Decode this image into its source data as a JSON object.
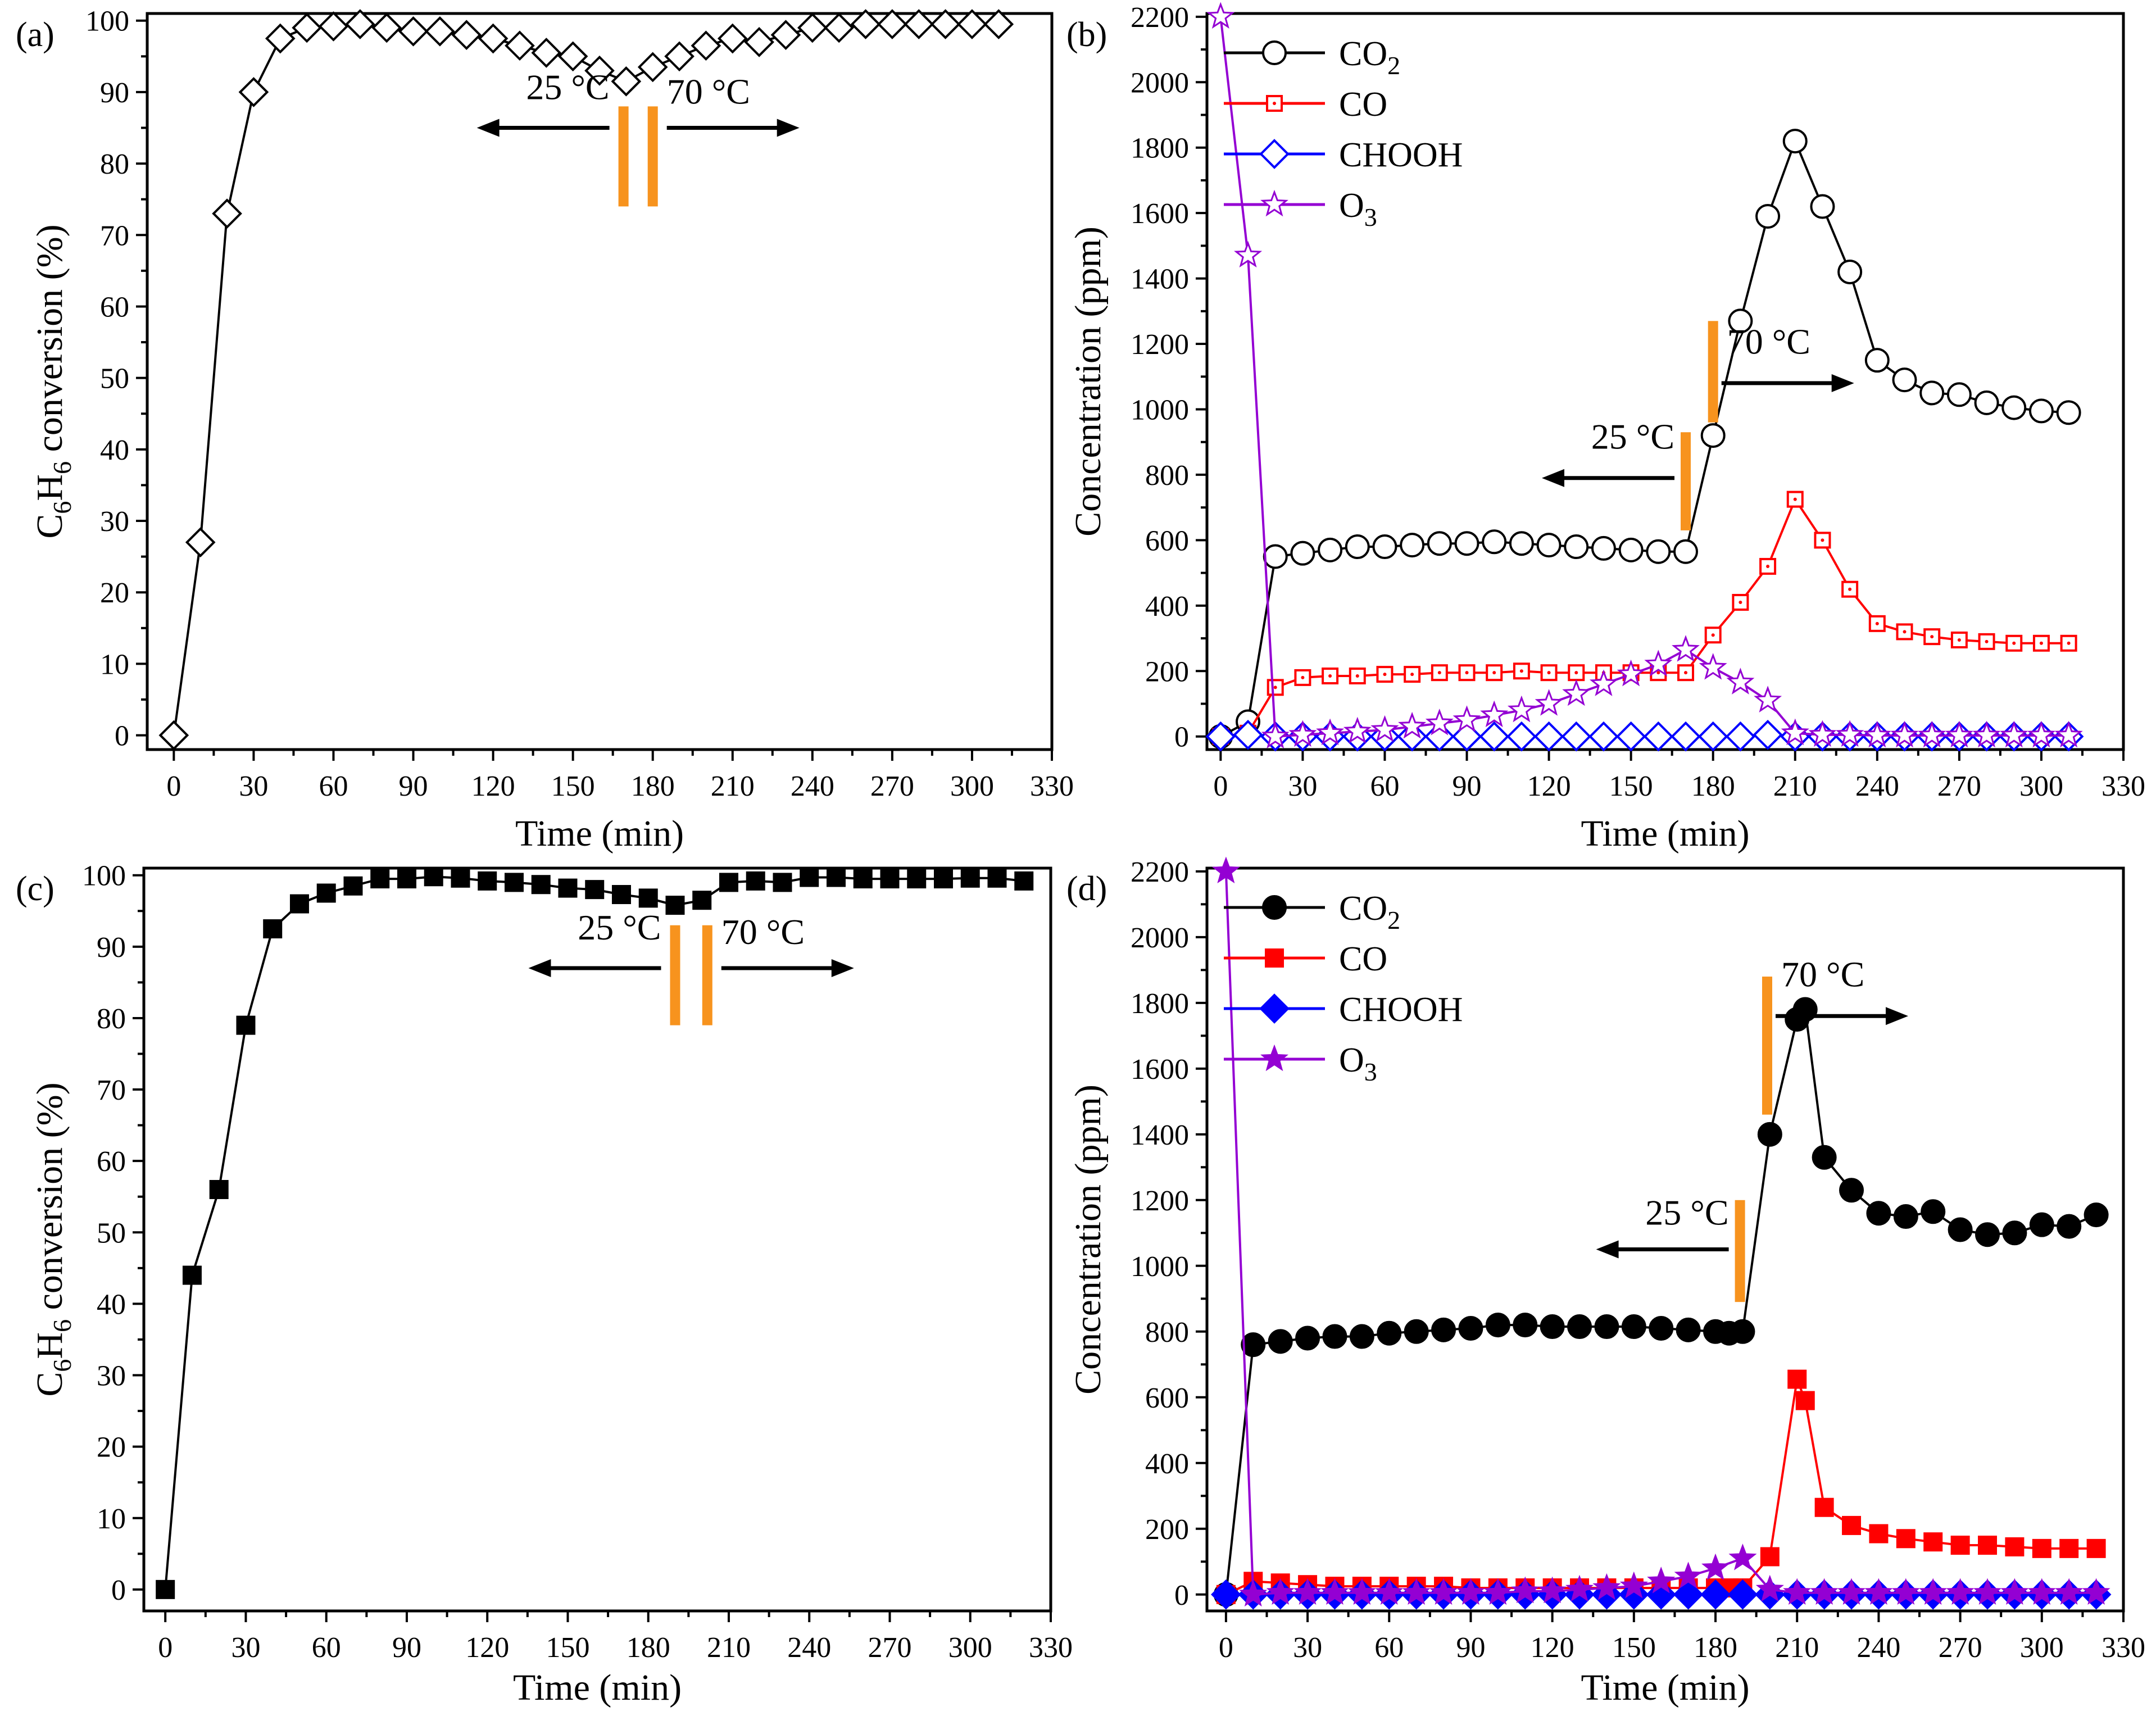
{
  "chart_data": [
    {
      "panel": "(a)",
      "type": "line",
      "xlabel": "Time (min)",
      "ylabel": "C6H6 conversion (%)",
      "ylabel_parts": {
        "a": "C",
        "b": "6",
        "c": "H",
        "d": "6",
        "e": " conversion (%)"
      },
      "xlim": [
        -10,
        330
      ],
      "ylim": [
        -2,
        101
      ],
      "xticks": [
        0,
        30,
        60,
        90,
        120,
        150,
        180,
        210,
        240,
        270,
        300,
        330
      ],
      "yticks": [
        0,
        10,
        20,
        30,
        40,
        50,
        60,
        70,
        80,
        90,
        100
      ],
      "annotations": {
        "left": "25 °C",
        "right": "70 °C",
        "left_t": 169,
        "right_t": 180,
        "y_text": 89,
        "y_arrow": 85,
        "bar_y": [
          74,
          88
        ]
      },
      "series": [
        {
          "name": "C6H6 conversion",
          "color": "#000000",
          "marker": "diamond",
          "filled": false,
          "x": [
            0,
            10,
            20,
            30,
            40,
            50,
            60,
            70,
            80,
            90,
            100,
            110,
            120,
            130,
            140,
            150,
            160,
            170,
            180,
            190,
            200,
            210,
            220,
            230,
            240,
            250,
            260,
            270,
            280,
            290,
            300,
            310
          ],
          "y": [
            0,
            27,
            73,
            90,
            97.5,
            99,
            99.2,
            99.5,
            99,
            98.5,
            98.5,
            98,
            97.5,
            96.5,
            95.5,
            95,
            93,
            91.5,
            93.5,
            95,
            96.5,
            97.5,
            97,
            98,
            99,
            99,
            99.5,
            99.5,
            99.5,
            99.5,
            99.5,
            99.5
          ]
        }
      ]
    },
    {
      "panel": "(b)",
      "type": "line",
      "xlabel": "Time (min)",
      "ylabel": "Concentration (ppm)",
      "xlim": [
        -5,
        330
      ],
      "ylim": [
        -40,
        2210
      ],
      "xticks": [
        0,
        30,
        60,
        90,
        120,
        150,
        180,
        210,
        240,
        270,
        300,
        330
      ],
      "yticks": [
        0,
        200,
        400,
        600,
        800,
        1000,
        1200,
        1400,
        1600,
        1800,
        2000,
        2200
      ],
      "annotations": {
        "left": "25 °C",
        "right": "70 °C",
        "left_t": 170,
        "right_t": 180,
        "left_y_text": 880,
        "left_y_arrow": 790,
        "left_bar": [
          630,
          930
        ],
        "right_y_text": 1170,
        "right_y_arrow": 1080,
        "right_bar": [
          960,
          1270
        ]
      },
      "legend": [
        {
          "label": "CO",
          "sub": "2"
        },
        {
          "label": "CO",
          "sub": ""
        },
        {
          "label": "CHOOH",
          "sub": ""
        },
        {
          "label": "O",
          "sub": "3"
        }
      ],
      "series": [
        {
          "name": "CO2",
          "color": "#000000",
          "marker": "circle",
          "filled": false,
          "x": [
            0,
            10,
            20,
            30,
            40,
            50,
            60,
            70,
            80,
            90,
            100,
            110,
            120,
            130,
            140,
            150,
            160,
            170,
            180,
            190,
            200,
            210,
            220,
            230,
            240,
            250,
            260,
            270,
            280,
            290,
            300,
            310
          ],
          "y": [
            0,
            45,
            550,
            560,
            570,
            580,
            580,
            585,
            590,
            590,
            595,
            590,
            585,
            580,
            575,
            570,
            565,
            565,
            920,
            1270,
            1590,
            1820,
            1620,
            1420,
            1150,
            1090,
            1050,
            1045,
            1020,
            1005,
            995,
            990
          ]
        },
        {
          "name": "CO",
          "color": "#ff0000",
          "marker": "square",
          "filled": false,
          "x": [
            0,
            10,
            20,
            30,
            40,
            50,
            60,
            70,
            80,
            90,
            100,
            110,
            120,
            130,
            140,
            150,
            160,
            170,
            180,
            190,
            200,
            210,
            220,
            230,
            240,
            250,
            260,
            270,
            280,
            290,
            300,
            310
          ],
          "y": [
            0,
            10,
            150,
            180,
            185,
            185,
            190,
            190,
            195,
            195,
            195,
            200,
            195,
            195,
            195,
            195,
            195,
            195,
            310,
            410,
            520,
            725,
            600,
            450,
            345,
            320,
            305,
            295,
            290,
            285,
            285,
            285
          ]
        },
        {
          "name": "CHOOH",
          "color": "#0000ff",
          "marker": "diamond",
          "filled": false,
          "x": [
            0,
            10,
            20,
            30,
            40,
            50,
            60,
            70,
            80,
            90,
            100,
            110,
            120,
            130,
            140,
            150,
            160,
            170,
            180,
            190,
            200,
            210,
            220,
            230,
            240,
            250,
            260,
            270,
            280,
            290,
            300,
            310
          ],
          "y": [
            0,
            5,
            0,
            0,
            0,
            0,
            0,
            0,
            0,
            0,
            0,
            0,
            0,
            0,
            0,
            0,
            0,
            0,
            0,
            0,
            5,
            0,
            0,
            0,
            0,
            0,
            0,
            0,
            0,
            0,
            0,
            0
          ]
        },
        {
          "name": "O3",
          "color": "#9400d3",
          "marker": "star",
          "filled": false,
          "x": [
            0,
            10,
            20,
            30,
            40,
            50,
            60,
            70,
            80,
            90,
            100,
            110,
            120,
            130,
            140,
            150,
            160,
            170,
            180,
            190,
            200,
            210,
            220,
            230,
            240,
            250,
            260,
            270,
            280,
            290,
            300,
            310
          ],
          "y": [
            2200,
            1470,
            0,
            5,
            10,
            15,
            20,
            30,
            40,
            50,
            65,
            80,
            100,
            130,
            160,
            190,
            220,
            265,
            210,
            165,
            110,
            10,
            5,
            5,
            3,
            3,
            3,
            3,
            3,
            3,
            3,
            3
          ]
        }
      ]
    },
    {
      "panel": "(c)",
      "type": "line",
      "xlabel": "Time (min)",
      "ylabel": "C6H6 conversion (%)",
      "ylabel_parts": {
        "a": "C",
        "b": "6",
        "c": "H",
        "d": "6",
        "e": " conversion (%)"
      },
      "xlim": [
        -8,
        330
      ],
      "ylim": [
        -3,
        101
      ],
      "xticks": [
        0,
        30,
        60,
        90,
        120,
        150,
        180,
        210,
        240,
        270,
        300,
        330
      ],
      "yticks": [
        0,
        10,
        20,
        30,
        40,
        50,
        60,
        70,
        80,
        90,
        100
      ],
      "annotations": {
        "left": "25 °C",
        "right": "70 °C",
        "left_t": 190,
        "right_t": 202,
        "y_text": 91,
        "y_arrow": 87,
        "bar_y": [
          79,
          93
        ]
      },
      "series": [
        {
          "name": "C6H6 conversion",
          "color": "#000000",
          "marker": "square",
          "filled": true,
          "x": [
            0,
            10,
            20,
            30,
            40,
            50,
            60,
            70,
            80,
            90,
            100,
            110,
            120,
            130,
            140,
            150,
            160,
            170,
            180,
            190,
            200,
            210,
            220,
            230,
            240,
            250,
            260,
            270,
            280,
            290,
            300,
            310,
            320
          ],
          "y": [
            0,
            44,
            56,
            79,
            92.5,
            96,
            97.5,
            98.5,
            99.5,
            99.5,
            99.8,
            99.6,
            99.2,
            99,
            98.7,
            98.2,
            98,
            97.3,
            96.8,
            95.8,
            96.5,
            99,
            99.2,
            99,
            99.7,
            99.7,
            99.5,
            99.5,
            99.5,
            99.5,
            99.6,
            99.6,
            99.2
          ]
        }
      ]
    },
    {
      "panel": "(d)",
      "type": "line",
      "xlabel": "Time (min)",
      "ylabel": "Concentration (ppm)",
      "xlim": [
        -7,
        330
      ],
      "ylim": [
        -50,
        2210
      ],
      "xticks": [
        0,
        30,
        60,
        90,
        120,
        150,
        180,
        210,
        240,
        270,
        300,
        330
      ],
      "yticks": [
        0,
        200,
        400,
        600,
        800,
        1000,
        1200,
        1400,
        1600,
        1800,
        2000,
        2200
      ],
      "annotations": {
        "left": "25 °C",
        "right": "70 °C",
        "left_t": 189,
        "right_t": 199,
        "left_y_text": 1125,
        "left_y_arrow": 1050,
        "left_bar": [
          890,
          1200
        ],
        "right_y_text": 1850,
        "right_y_arrow": 1760,
        "right_bar": [
          1460,
          1880
        ]
      },
      "legend": [
        {
          "label": "CO",
          "sub": "2"
        },
        {
          "label": "CO",
          "sub": ""
        },
        {
          "label": "CHOOH",
          "sub": ""
        },
        {
          "label": "O",
          "sub": "3"
        }
      ],
      "series": [
        {
          "name": "CO2",
          "color": "#000000",
          "marker": "circle",
          "filled": true,
          "x": [
            0,
            10,
            20,
            30,
            40,
            50,
            60,
            70,
            80,
            90,
            100,
            110,
            120,
            130,
            140,
            150,
            160,
            170,
            180,
            185,
            190,
            200,
            210,
            213,
            220,
            230,
            240,
            250,
            260,
            270,
            280,
            290,
            300,
            310,
            320
          ],
          "y": [
            0,
            760,
            770,
            780,
            785,
            785,
            795,
            800,
            805,
            810,
            820,
            820,
            815,
            815,
            815,
            815,
            810,
            805,
            800,
            795,
            800,
            1400,
            1750,
            1780,
            1330,
            1230,
            1160,
            1150,
            1165,
            1110,
            1095,
            1100,
            1125,
            1120,
            1155
          ]
        },
        {
          "name": "CO",
          "color": "#ff0000",
          "marker": "square",
          "filled": true,
          "x": [
            0,
            10,
            20,
            30,
            40,
            50,
            60,
            70,
            80,
            90,
            100,
            110,
            120,
            130,
            140,
            150,
            160,
            170,
            180,
            185,
            190,
            200,
            210,
            213,
            220,
            230,
            240,
            250,
            260,
            270,
            280,
            290,
            300,
            310,
            320
          ],
          "y": [
            0,
            40,
            35,
            30,
            25,
            25,
            25,
            25,
            25,
            20,
            20,
            20,
            20,
            20,
            20,
            20,
            20,
            20,
            20,
            20,
            20,
            115,
            655,
            590,
            265,
            210,
            185,
            170,
            160,
            150,
            150,
            145,
            140,
            140,
            140
          ]
        },
        {
          "name": "CHOOH",
          "color": "#0000ff",
          "marker": "diamond",
          "filled": true,
          "x": [
            0,
            10,
            20,
            30,
            40,
            50,
            60,
            70,
            80,
            90,
            100,
            110,
            120,
            130,
            140,
            150,
            160,
            170,
            180,
            190,
            200,
            210,
            220,
            230,
            240,
            250,
            260,
            270,
            280,
            290,
            300,
            310,
            320
          ],
          "y": [
            0,
            0,
            0,
            0,
            0,
            0,
            0,
            0,
            0,
            0,
            0,
            0,
            0,
            0,
            0,
            0,
            0,
            0,
            0,
            0,
            0,
            0,
            0,
            0,
            0,
            0,
            0,
            0,
            0,
            0,
            0,
            0,
            0
          ]
        },
        {
          "name": "O3",
          "color": "#9400d3",
          "marker": "star",
          "filled": true,
          "x": [
            0,
            10,
            20,
            30,
            40,
            50,
            60,
            70,
            80,
            90,
            100,
            110,
            120,
            130,
            140,
            150,
            160,
            170,
            180,
            190,
            200,
            210,
            220,
            230,
            240,
            250,
            260,
            270,
            280,
            290,
            300,
            310,
            320
          ],
          "y": [
            2200,
            0,
            5,
            5,
            5,
            5,
            5,
            5,
            5,
            5,
            5,
            10,
            10,
            15,
            20,
            25,
            40,
            55,
            80,
            110,
            15,
            5,
            5,
            5,
            5,
            5,
            5,
            5,
            5,
            5,
            5,
            5,
            5
          ]
        }
      ]
    }
  ],
  "colors": {
    "annotation_bar": "#f7931e",
    "frame": "#000000"
  }
}
